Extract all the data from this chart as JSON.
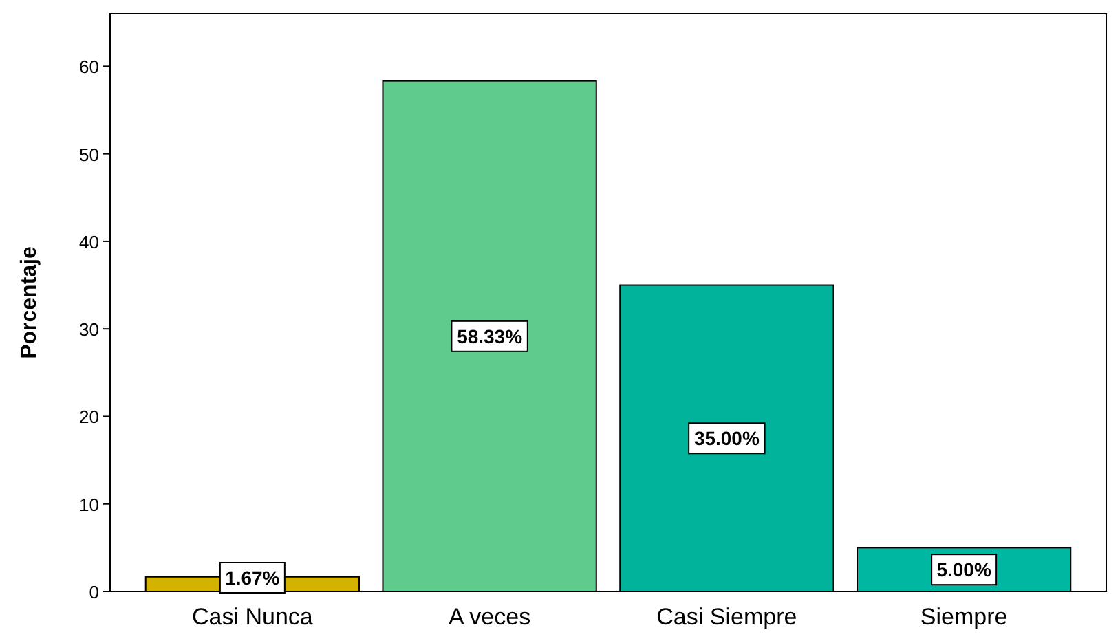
{
  "chart_data": {
    "type": "bar",
    "ylabel": "Porcentaje",
    "categories": [
      "Casi Nunca",
      "A veces",
      "Casi Siempre",
      "Siempre"
    ],
    "values": [
      1.67,
      58.33,
      35.0,
      5.0
    ],
    "colors": [
      "#d4b300",
      "#5fcb8c",
      "#00b39a",
      "#00b8a2"
    ],
    "value_labels": [
      "1.67%",
      "58.33%",
      "35.00%",
      "5.00%"
    ],
    "ylim": [
      0,
      66
    ],
    "yticks": [
      0,
      10,
      20,
      30,
      40,
      50,
      60
    ],
    "grid": false
  }
}
